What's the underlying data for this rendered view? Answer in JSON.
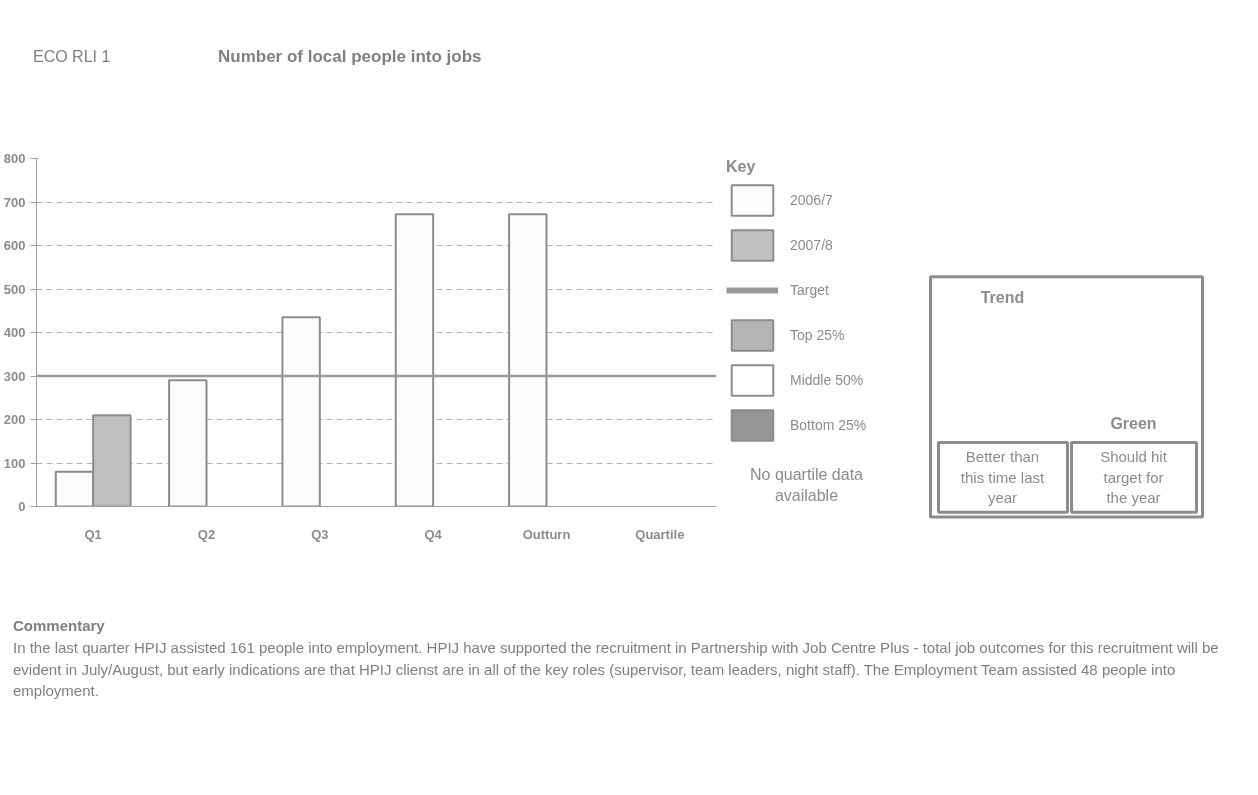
{
  "chart_data": {
    "type": "bar",
    "title": "Number of local people into jobs",
    "categories": [
      "Q1",
      "Q2",
      "Q3",
      "Q4",
      "Outturn",
      "Quartile"
    ],
    "series": [
      {
        "name": "2006/7",
        "color": "#fcfcfc",
        "values": [
          80,
          290,
          435,
          672,
          672,
          null
        ]
      },
      {
        "name": "2007/8",
        "color": "#c0c0c0",
        "values": [
          210,
          null,
          null,
          null,
          null,
          null
        ]
      },
      {
        "name": "Top 25%",
        "color": "#b4b4b4",
        "values": [
          null,
          null,
          null,
          null,
          null,
          null
        ]
      },
      {
        "name": "Middle 50%",
        "color": "#ffffff",
        "values": [
          null,
          null,
          null,
          null,
          null,
          null
        ]
      },
      {
        "name": "Bottom 25%",
        "color": "#969696",
        "values": [
          null,
          null,
          null,
          null,
          null,
          null
        ]
      }
    ],
    "ylim": [
      0,
      800
    ],
    "yticks": [
      0,
      100,
      200,
      300,
      400,
      500,
      600,
      700,
      800
    ],
    "grid": "y",
    "legend": "right",
    "legend_title": "Key",
    "ref_lines": [
      {
        "axis": "y",
        "value": 300,
        "label": "Target",
        "color": "#999999"
      }
    ],
    "annotations": [
      "ECO RLI 1",
      "No quartile data available",
      "Trend",
      "Green",
      "Better than this time last year",
      "Should hit target for the year",
      "Commentary",
      "In the last quarter HPIJ assisted 161 people into employment. HPIJ have supported the recruitment in Partnership with Job Centre Plus - total job outcomes for this recruitment will be evident in July/August, but early indications are that HPIJ clienst are in all of the key roles (supervisor, team leaders, night staff). The Employment Team assisted 48 people into employment."
    ]
  }
}
